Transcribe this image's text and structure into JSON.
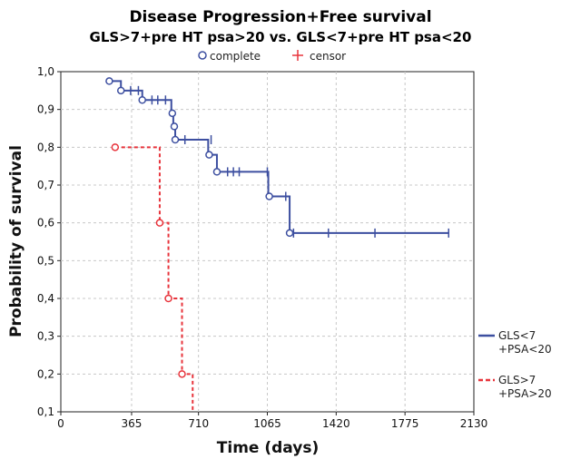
{
  "chart_data": {
    "type": "line",
    "title": "Disease Progression+Free survival",
    "subtitle": "GLS>7+pre HT psa>20  vs.  GLS<7+pre HT psa<20",
    "xlabel": "Time (days)",
    "ylabel": "Probability of survival",
    "xlim": [
      0,
      2130
    ],
    "ylim": [
      0.1,
      1.0
    ],
    "x_ticks": [
      0,
      365,
      710,
      1065,
      1420,
      1775,
      2130
    ],
    "x_tick_labels": [
      "0",
      "365",
      "710",
      "1065",
      "1420",
      "1775",
      "2130"
    ],
    "y_ticks": [
      0.1,
      0.2,
      0.3,
      0.4,
      0.5,
      0.6,
      0.7,
      0.8,
      0.9,
      1.0
    ],
    "y_tick_labels": [
      "0,1",
      "0,2",
      "0,3",
      "0,4",
      "0,5",
      "0,6",
      "0,7",
      "0,8",
      "0,9",
      "1,0"
    ],
    "grid": true,
    "marker_legend": [
      {
        "label": "complete",
        "symbol": "o",
        "color": "#3d4fa0"
      },
      {
        "label": "censor",
        "symbol": "+",
        "color": "#e8343c"
      }
    ],
    "legend_position": "right",
    "series": [
      {
        "name": "GLS<7 +PSA<20",
        "legend_lines": [
          "GLS<7",
          "+PSA<20"
        ],
        "color": "#3d4fa0",
        "dash": "solid",
        "steps": [
          [
            250,
            0.975
          ],
          [
            310,
            0.95
          ],
          [
            420,
            0.925
          ],
          [
            570,
            0.89
          ],
          [
            580,
            0.855
          ],
          [
            590,
            0.82
          ],
          [
            760,
            0.78
          ],
          [
            805,
            0.735
          ],
          [
            1070,
            0.67
          ],
          [
            1180,
            0.573
          ],
          [
            2000,
            0.573
          ]
        ],
        "complete_events": [
          [
            250,
            0.975
          ],
          [
            310,
            0.95
          ],
          [
            420,
            0.925
          ],
          [
            575,
            0.89
          ],
          [
            585,
            0.855
          ],
          [
            590,
            0.82
          ],
          [
            765,
            0.78
          ],
          [
            805,
            0.735
          ],
          [
            1075,
            0.67
          ],
          [
            1180,
            0.573
          ]
        ],
        "censored": [
          [
            360,
            0.95
          ],
          [
            400,
            0.95
          ],
          [
            470,
            0.925
          ],
          [
            500,
            0.925
          ],
          [
            540,
            0.925
          ],
          [
            640,
            0.82
          ],
          [
            775,
            0.82
          ],
          [
            860,
            0.735
          ],
          [
            890,
            0.735
          ],
          [
            920,
            0.735
          ],
          [
            1065,
            0.735
          ],
          [
            1160,
            0.67
          ],
          [
            1200,
            0.573
          ],
          [
            1380,
            0.573
          ],
          [
            1620,
            0.573
          ],
          [
            2000,
            0.573
          ]
        ]
      },
      {
        "name": "GLS>7 +PSA>20",
        "legend_lines": [
          "GLS>7",
          "+PSA>20"
        ],
        "color": "#e8343c",
        "dash": "dashed",
        "steps": [
          [
            280,
            0.8
          ],
          [
            510,
            0.6
          ],
          [
            555,
            0.4
          ],
          [
            625,
            0.2
          ],
          [
            680,
            0.1
          ]
        ],
        "complete_events": [
          [
            280,
            0.8
          ],
          [
            510,
            0.6
          ],
          [
            555,
            0.4
          ],
          [
            625,
            0.2
          ]
        ],
        "censored": []
      }
    ]
  }
}
